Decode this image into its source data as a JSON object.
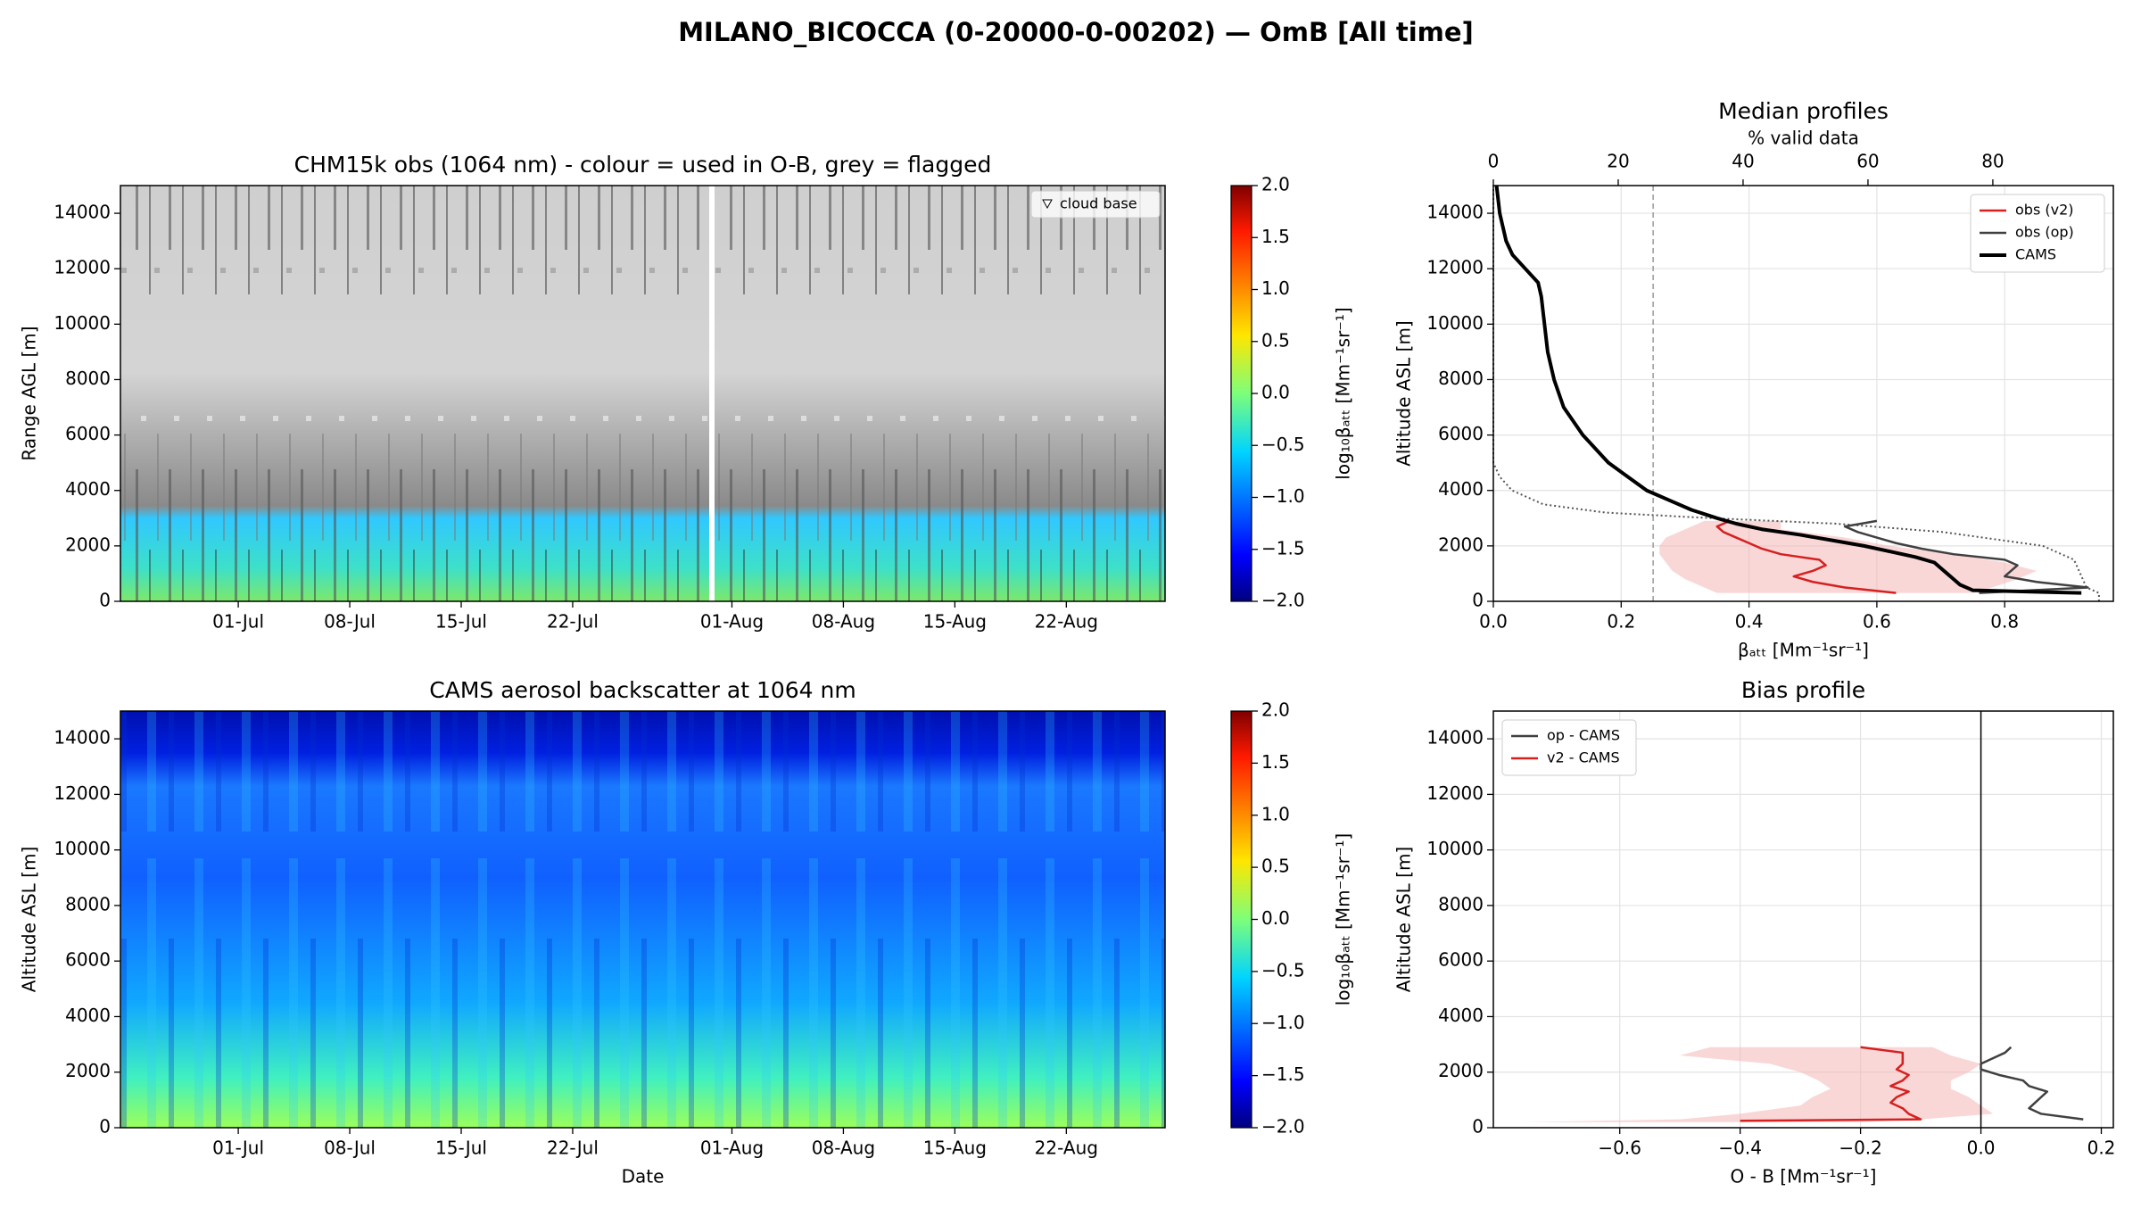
{
  "title": "MILANO_BICOCCA (0-20000-0-00202) — OmB [All time]",
  "chart_data": [
    {
      "type": "heatmap",
      "title": "CHM15k obs (1064 nm) - colour = used in O-B, grey = flagged",
      "ylabel": "Range AGL [m]",
      "legend": "cloud base",
      "legend_loc": "upper right",
      "xlim": [
        174.6,
        240.2
      ],
      "xticks": [
        {
          "value": 182,
          "label": "01-Jul"
        },
        {
          "value": 189,
          "label": "08-Jul"
        },
        {
          "value": 196,
          "label": "15-Jul"
        },
        {
          "value": 203,
          "label": "22-Jul"
        },
        {
          "value": 213,
          "label": "01-Aug"
        },
        {
          "value": 220,
          "label": "08-Aug"
        },
        {
          "value": 227,
          "label": "15-Aug"
        },
        {
          "value": 234,
          "label": "22-Aug"
        }
      ],
      "ylim": [
        0,
        15000
      ],
      "yticks": [
        0,
        2000,
        4000,
        6000,
        8000,
        10000,
        12000,
        14000
      ],
      "colorbar": {
        "label": "log₁₀βₐₜₜ [Mm⁻¹sr⁻¹]",
        "lim": [
          -2,
          2
        ],
        "colormap": "jet",
        "ticks": [
          {
            "value": -2,
            "label": "−2.0"
          },
          {
            "value": -1.5,
            "label": "−1.5"
          },
          {
            "value": -1,
            "label": "−1.0"
          },
          {
            "value": -0.5,
            "label": "−0.5"
          },
          {
            "value": 0,
            "label": "0.0"
          },
          {
            "value": 0.5,
            "label": "0.5"
          },
          {
            "value": 1,
            "label": "1.0"
          },
          {
            "value": 1.5,
            "label": "1.5"
          },
          {
            "value": 2,
            "label": "2.0"
          }
        ]
      }
    },
    {
      "type": "heatmap",
      "title": "CAMS aerosol backscatter at 1064 nm",
      "xlabel": "Date",
      "ylabel": "Altitude ASL [m]",
      "xlim": [
        174.6,
        240.2
      ],
      "xticks": [
        {
          "value": 182,
          "label": "01-Jul"
        },
        {
          "value": 189,
          "label": "08-Jul"
        },
        {
          "value": 196,
          "label": "15-Jul"
        },
        {
          "value": 203,
          "label": "22-Jul"
        },
        {
          "value": 213,
          "label": "01-Aug"
        },
        {
          "value": 220,
          "label": "08-Aug"
        },
        {
          "value": 227,
          "label": "15-Aug"
        },
        {
          "value": 234,
          "label": "22-Aug"
        }
      ],
      "ylim": [
        0,
        15000
      ],
      "yticks": [
        0,
        2000,
        4000,
        6000,
        8000,
        10000,
        12000,
        14000
      ],
      "colorbar": {
        "label": "log₁₀βₐₜₜ [Mm⁻¹sr⁻¹]",
        "lim": [
          -2,
          2
        ],
        "colormap": "jet",
        "ticks": [
          {
            "value": -2,
            "label": "−2.0"
          },
          {
            "value": -1.5,
            "label": "−1.5"
          },
          {
            "value": -1,
            "label": "−1.0"
          },
          {
            "value": -0.5,
            "label": "−0.5"
          },
          {
            "value": 0,
            "label": "0.0"
          },
          {
            "value": 0.5,
            "label": "0.5"
          },
          {
            "value": 1,
            "label": "1.0"
          },
          {
            "value": 1.5,
            "label": "1.5"
          },
          {
            "value": 2,
            "label": "2.0"
          }
        ]
      }
    },
    {
      "type": "profile",
      "title": "Median profiles",
      "xlabel": "βₐₜₜ [Mm⁻¹sr⁻¹]",
      "ylabel": "Altitude ASL [m]",
      "x2label": "% valid data",
      "grid": true,
      "legend_loc": "upper right",
      "xlim": [
        0,
        0.97
      ],
      "xticks": [
        {
          "value": 0,
          "label": "0.0"
        },
        0.2,
        0.4,
        0.6,
        0.8
      ],
      "x2lim": [
        0,
        99.3
      ],
      "x2ticks": [
        0,
        20,
        40,
        60,
        80
      ],
      "ylim": [
        0,
        15000
      ],
      "yticks": [
        0,
        2000,
        4000,
        6000,
        8000,
        10000,
        12000,
        14000
      ],
      "vline": {
        "value": 0.25,
        "color": "#999999"
      },
      "band": {
        "color": "#f4b6b6",
        "y": [
          300,
          500,
          800,
          1100,
          1400,
          1700,
          2000,
          2300,
          2600,
          2900
        ],
        "lower": [
          0.35,
          0.33,
          0.3,
          0.28,
          0.27,
          0.26,
          0.26,
          0.27,
          0.3,
          0.33
        ],
        "upper": [
          0.75,
          0.78,
          0.82,
          0.85,
          0.8,
          0.72,
          0.62,
          0.55,
          0.45,
          0.45
        ]
      },
      "valid_data": {
        "color": "#555555",
        "y": [
          0,
          300,
          500,
          1000,
          1500,
          2000,
          2500,
          2800,
          3000,
          3200,
          3500,
          4000,
          4500,
          5000,
          15000
        ],
        "values": [
          97,
          97,
          95,
          94,
          93,
          88,
          72,
          55,
          35,
          18,
          8,
          3,
          1,
          0,
          0
        ]
      },
      "series": [
        {
          "name": "obs (v2)",
          "color": "#d62020",
          "width": 2.5,
          "y": [
            300,
            500,
            700,
            900,
            1100,
            1300,
            1500,
            1700,
            1900,
            2100,
            2300,
            2500,
            2700,
            2900
          ],
          "values": [
            0.63,
            0.55,
            0.5,
            0.47,
            0.5,
            0.52,
            0.51,
            0.45,
            0.42,
            0.4,
            0.38,
            0.36,
            0.35,
            0.37
          ]
        },
        {
          "name": "obs (op)",
          "color": "#404040",
          "width": 2.5,
          "y": [
            300,
            500,
            700,
            900,
            1100,
            1300,
            1500,
            1700,
            1900,
            2100,
            2300,
            2500,
            2700,
            2900
          ],
          "values": [
            0.76,
            0.93,
            0.85,
            0.8,
            0.81,
            0.82,
            0.8,
            0.72,
            0.67,
            0.63,
            0.6,
            0.57,
            0.55,
            0.6
          ]
        },
        {
          "name": "CAMS",
          "color": "#000000",
          "width": 4,
          "y": [
            300,
            400,
            600,
            800,
            1000,
            1200,
            1400,
            1600,
            1800,
            2000,
            2200,
            2400,
            2600,
            2800,
            3000,
            3300,
            3600,
            4000,
            4500,
            5000,
            5500,
            6000,
            7000,
            8000,
            9000,
            10000,
            11000,
            11500,
            12000,
            12500,
            13000,
            14000,
            15000
          ],
          "values": [
            0.92,
            0.75,
            0.73,
            0.72,
            0.71,
            0.7,
            0.69,
            0.66,
            0.62,
            0.58,
            0.53,
            0.48,
            0.42,
            0.38,
            0.35,
            0.31,
            0.28,
            0.24,
            0.21,
            0.18,
            0.16,
            0.14,
            0.11,
            0.095,
            0.085,
            0.08,
            0.075,
            0.07,
            0.05,
            0.03,
            0.02,
            0.01,
            0.005
          ]
        }
      ]
    },
    {
      "type": "profile",
      "title": "Bias profile",
      "xlabel": "O - B [Mm⁻¹sr⁻¹]",
      "ylabel": "Altitude ASL [m]",
      "grid": true,
      "legend_loc": "upper left",
      "xlim": [
        -0.81,
        0.22
      ],
      "xticks": [
        {
          "value": -0.6,
          "label": "−0.6"
        },
        {
          "value": -0.4,
          "label": "−0.4"
        },
        {
          "value": -0.2,
          "label": "−0.2"
        },
        {
          "value": 0,
          "label": "0.0"
        },
        0.2
      ],
      "ylim": [
        0,
        15000
      ],
      "yticks": [
        0,
        2000,
        4000,
        6000,
        8000,
        10000,
        12000,
        14000
      ],
      "vline": {
        "value": 0,
        "color": "#000000"
      },
      "band": {
        "color": "#f4b6b6",
        "y": [
          200,
          300,
          500,
          800,
          1100,
          1400,
          1700,
          2000,
          2300,
          2600,
          2900
        ],
        "lower": [
          -0.76,
          -0.5,
          -0.4,
          -0.3,
          -0.28,
          -0.25,
          -0.27,
          -0.3,
          -0.35,
          -0.5,
          -0.45
        ],
        "upper": [
          -0.2,
          -0.1,
          0.02,
          0,
          -0.02,
          -0.05,
          -0.05,
          -0.02,
          0,
          -0.05,
          -0.08
        ]
      },
      "series": [
        {
          "name": "op - CAMS",
          "color": "#404040",
          "width": 2.5,
          "y": [
            300,
            500,
            700,
            900,
            1100,
            1300,
            1500,
            1700,
            1900,
            2100,
            2300,
            2500,
            2700,
            2900
          ],
          "values": [
            0.17,
            0.1,
            0.08,
            0.09,
            0.1,
            0.11,
            0.08,
            0.07,
            0.03,
            0,
            0,
            0.02,
            0.04,
            0.05
          ]
        },
        {
          "name": "v2 - CAMS",
          "color": "#d62020",
          "width": 2.5,
          "y": [
            250,
            300,
            500,
            700,
            900,
            1100,
            1300,
            1500,
            1700,
            1900,
            2100,
            2300,
            2500,
            2700,
            2900
          ],
          "values": [
            -0.4,
            -0.1,
            -0.12,
            -0.13,
            -0.15,
            -0.14,
            -0.12,
            -0.15,
            -0.13,
            -0.12,
            -0.14,
            -0.13,
            -0.13,
            -0.13,
            -0.2
          ]
        }
      ]
    }
  ]
}
